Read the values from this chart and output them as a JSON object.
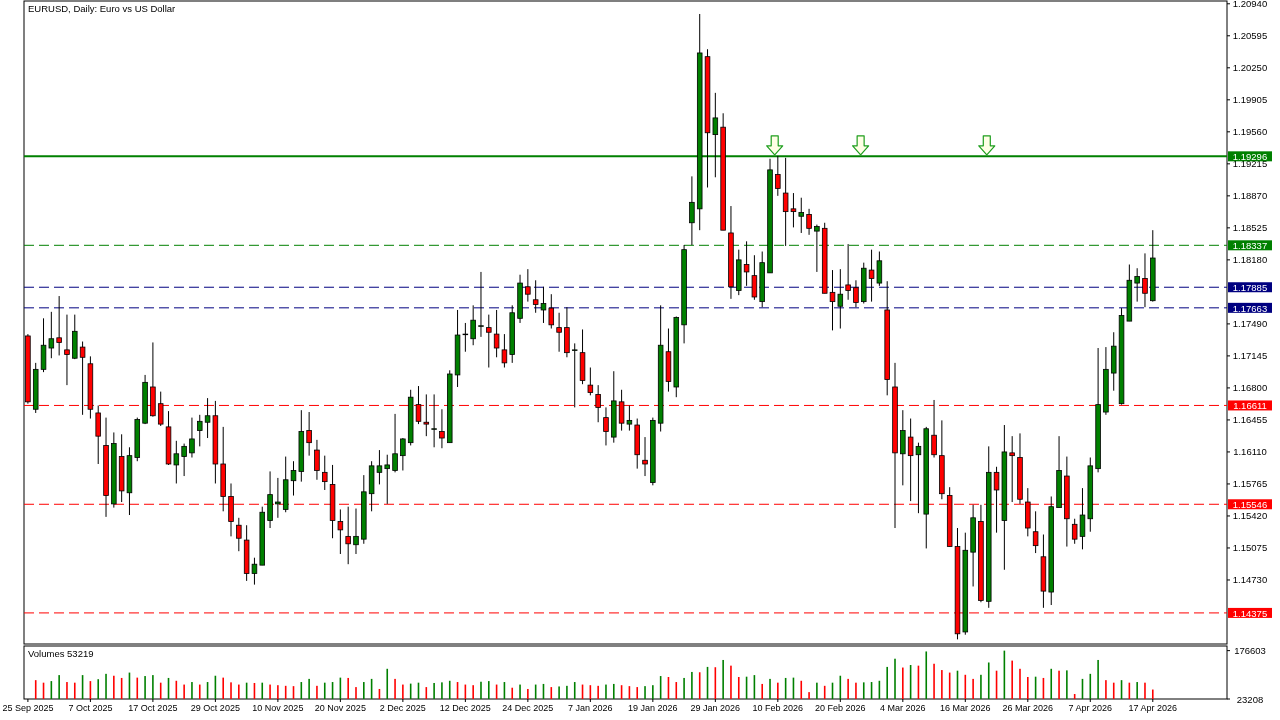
{
  "chart_data": [
    {
      "type": "candlestick",
      "title": "EURUSD, Daily: Euro vs US Dollar",
      "tick_labels": "y",
      "categories": [
        null,
        null,
        null,
        null,
        null,
        null,
        null,
        null,
        null,
        null,
        null,
        null,
        null,
        null,
        null,
        null,
        null,
        null,
        null,
        null,
        null,
        null,
        null,
        null,
        null,
        null,
        null,
        null,
        null,
        null,
        null,
        null,
        null,
        null,
        null,
        null,
        null,
        null,
        null,
        null,
        null,
        null,
        null,
        null,
        null,
        null,
        null,
        null,
        null,
        null,
        null,
        null,
        null,
        null,
        null,
        null,
        null,
        null,
        null,
        null,
        null,
        null,
        null,
        null,
        null,
        null,
        null,
        null,
        null,
        null,
        null,
        null,
        null,
        null,
        null,
        null,
        null,
        null,
        null,
        null,
        null,
        null,
        null,
        null,
        null,
        null,
        null,
        null,
        null,
        null,
        null,
        null,
        null,
        null,
        null,
        null,
        null,
        null,
        null,
        null,
        null,
        null,
        null,
        null,
        null,
        null,
        null,
        null,
        null,
        null,
        null,
        null,
        null,
        null,
        null,
        null,
        null,
        null,
        null,
        null,
        null,
        null,
        null,
        null,
        null,
        null,
        null,
        null,
        null,
        null,
        null,
        null,
        null,
        null,
        null,
        null,
        null,
        null,
        null,
        null,
        null,
        null,
        null,
        null,
        null,
        null,
        null,
        null,
        null,
        null,
        null,
        null,
        null,
        null
      ],
      "ohlc": [
        [
          1.1736,
          1.1738,
          1.1663,
          1.1665
        ],
        [
          1.1657,
          1.1707,
          1.1653,
          1.17
        ],
        [
          1.17,
          1.1755,
          1.1697,
          1.1726
        ],
        [
          1.1723,
          1.1762,
          1.1712,
          1.1733
        ],
        [
          1.1734,
          1.1779,
          1.1715,
          1.1729
        ],
        [
          1.1721,
          1.1759,
          1.1683,
          1.1716
        ],
        [
          1.1712,
          1.1759,
          1.1711,
          1.1741
        ],
        [
          1.1724,
          1.173,
          1.1651,
          1.1713
        ],
        [
          1.1706,
          1.1714,
          1.1647,
          1.1657
        ],
        [
          1.1653,
          1.1661,
          1.1598,
          1.1628
        ],
        [
          1.1618,
          1.1648,
          1.1541,
          1.1564
        ],
        [
          1.1555,
          1.1632,
          1.1551,
          1.162
        ],
        [
          1.1606,
          1.163,
          1.1557,
          1.1569
        ],
        [
          1.1567,
          1.1616,
          1.1543,
          1.1607
        ],
        [
          1.1605,
          1.1648,
          1.1601,
          1.1646
        ],
        [
          1.1642,
          1.1694,
          1.1641,
          1.1686
        ],
        [
          1.1681,
          1.1729,
          1.1649,
          1.165
        ],
        [
          1.1663,
          1.1676,
          1.1639,
          1.1641
        ],
        [
          1.1638,
          1.1655,
          1.1597,
          1.1598
        ],
        [
          1.1597,
          1.1623,
          1.1577,
          1.1609
        ],
        [
          1.1606,
          1.162,
          1.1585,
          1.1617
        ],
        [
          1.161,
          1.1648,
          1.1605,
          1.1625
        ],
        [
          1.1634,
          1.1651,
          1.1617,
          1.1644
        ],
        [
          1.1643,
          1.1669,
          1.1626,
          1.165
        ],
        [
          1.165,
          1.1666,
          1.1577,
          1.1598
        ],
        [
          1.1598,
          1.1638,
          1.1547,
          1.1563
        ],
        [
          1.1563,
          1.1577,
          1.152,
          1.1536
        ],
        [
          1.1532,
          1.154,
          1.1504,
          1.1518
        ],
        [
          1.1516,
          1.1532,
          1.1472,
          1.148
        ],
        [
          1.148,
          1.1497,
          1.1468,
          1.149
        ],
        [
          1.1489,
          1.1552,
          1.1489,
          1.1546
        ],
        [
          1.1537,
          1.159,
          1.1529,
          1.1565
        ],
        [
          1.1555,
          1.1583,
          1.154,
          1.1557
        ],
        [
          1.1549,
          1.1606,
          1.1546,
          1.1581
        ],
        [
          1.158,
          1.1601,
          1.1564,
          1.1591
        ],
        [
          1.159,
          1.1656,
          1.1579,
          1.1633
        ],
        [
          1.1634,
          1.1654,
          1.1607,
          1.1621
        ],
        [
          1.1613,
          1.1624,
          1.1581,
          1.1591
        ],
        [
          1.1589,
          1.1607,
          1.157,
          1.1579
        ],
        [
          1.1576,
          1.1597,
          1.1518,
          1.1537
        ],
        [
          1.1536,
          1.1549,
          1.1501,
          1.1527
        ],
        [
          1.152,
          1.1552,
          1.149,
          1.1512
        ],
        [
          1.1511,
          1.155,
          1.1501,
          1.152
        ],
        [
          1.1517,
          1.1586,
          1.1512,
          1.1568
        ],
        [
          1.1566,
          1.1601,
          1.1547,
          1.1596
        ],
        [
          1.1589,
          1.1613,
          1.1576,
          1.1596
        ],
        [
          1.1593,
          1.1608,
          1.1555,
          1.1597
        ],
        [
          1.1591,
          1.1652,
          1.1589,
          1.1609
        ],
        [
          1.1607,
          1.1626,
          1.1591,
          1.1625
        ],
        [
          1.1621,
          1.1678,
          1.1618,
          1.167
        ],
        [
          1.1662,
          1.1682,
          1.1641,
          1.1644
        ],
        [
          1.1643,
          1.1673,
          1.1628,
          1.1641
        ],
        [
          1.1636,
          1.1673,
          1.1616,
          1.1636
        ],
        [
          1.1633,
          1.1657,
          1.1615,
          1.1626
        ],
        [
          1.1621,
          1.1699,
          1.1621,
          1.1695
        ],
        [
          1.1694,
          1.1764,
          1.1681,
          1.1737
        ],
        [
          1.1738,
          1.175,
          1.1719,
          1.1738
        ],
        [
          1.1733,
          1.1769,
          1.1726,
          1.1753
        ],
        [
          1.1747,
          1.1805,
          1.1735,
          1.1747
        ],
        [
          1.1745,
          1.1759,
          1.1702,
          1.174
        ],
        [
          1.1738,
          1.1764,
          1.1713,
          1.1723
        ],
        [
          1.1721,
          1.1738,
          1.1702,
          1.1707
        ],
        [
          1.1716,
          1.1769,
          1.1707,
          1.1761
        ],
        [
          1.1755,
          1.1802,
          1.175,
          1.1793
        ],
        [
          1.1789,
          1.1808,
          1.1773,
          1.1781
        ],
        [
          1.1775,
          1.1796,
          1.1761,
          1.177
        ],
        [
          1.1764,
          1.1789,
          1.175,
          1.1771
        ],
        [
          1.1766,
          1.1781,
          1.1744,
          1.1748
        ],
        [
          1.1745,
          1.1761,
          1.1719,
          1.174
        ],
        [
          1.1745,
          1.1767,
          1.1713,
          1.1718
        ],
        [
          1.1721,
          1.1728,
          1.1659,
          1.1721
        ],
        [
          1.1718,
          1.1743,
          1.1684,
          1.1688
        ],
        [
          1.1683,
          1.1702,
          1.1672,
          1.1675
        ],
        [
          1.1673,
          1.1683,
          1.1643,
          1.1659
        ],
        [
          1.1648,
          1.1659,
          1.1618,
          1.1633
        ],
        [
          1.1627,
          1.1698,
          1.1621,
          1.1666
        ],
        [
          1.1665,
          1.1678,
          1.1634,
          1.1642
        ],
        [
          1.1641,
          1.1661,
          1.1634,
          1.1645
        ],
        [
          1.164,
          1.1647,
          1.1593,
          1.1608
        ],
        [
          1.1602,
          1.1627,
          1.1585,
          1.1598
        ],
        [
          1.1578,
          1.1648,
          1.1575,
          1.1645
        ],
        [
          1.1642,
          1.1769,
          1.1633,
          1.1726
        ],
        [
          1.1719,
          1.1744,
          1.1676,
          1.1687
        ],
        [
          1.1681,
          1.1757,
          1.167,
          1.1756
        ],
        [
          1.1748,
          1.1834,
          1.1728,
          1.1829
        ],
        [
          1.1858,
          1.1908,
          1.1834,
          1.188
        ],
        [
          1.1873,
          1.2083,
          1.185,
          1.2041
        ],
        [
          1.2037,
          1.2045,
          1.1896,
          1.1955
        ],
        [
          1.1953,
          1.1998,
          1.1907,
          1.1971
        ],
        [
          1.1961,
          1.1976,
          1.185,
          1.185
        ],
        [
          1.1847,
          1.1876,
          1.1776,
          1.1789
        ],
        [
          1.1785,
          1.1829,
          1.178,
          1.1818
        ],
        [
          1.1813,
          1.1838,
          1.179,
          1.1805
        ],
        [
          1.1801,
          1.1823,
          1.1775,
          1.1778
        ],
        [
          1.1773,
          1.1827,
          1.1767,
          1.1815
        ],
        [
          1.1804,
          1.1927,
          1.1804,
          1.1915
        ],
        [
          1.191,
          1.193,
          1.1887,
          1.1895
        ],
        [
          1.189,
          1.1928,
          1.1833,
          1.187
        ],
        [
          1.1873,
          1.189,
          1.1853,
          1.187
        ],
        [
          1.1865,
          1.1885,
          1.1847,
          1.1869
        ],
        [
          1.1867,
          1.1873,
          1.1845,
          1.1852
        ],
        [
          1.1849,
          1.1856,
          1.1805,
          1.1854
        ],
        [
          1.1852,
          1.1858,
          1.1782,
          1.1782
        ],
        [
          1.1783,
          1.1807,
          1.1742,
          1.1773
        ],
        [
          1.1768,
          1.1808,
          1.1744,
          1.1781
        ],
        [
          1.1791,
          1.1835,
          1.1775,
          1.1785
        ],
        [
          1.1788,
          1.1796,
          1.1767,
          1.1772
        ],
        [
          1.1773,
          1.1815,
          1.1771,
          1.1809
        ],
        [
          1.1807,
          1.1829,
          1.1773,
          1.1798
        ],
        [
          1.1793,
          1.1827,
          1.179,
          1.1817
        ],
        [
          1.1764,
          1.1795,
          1.1672,
          1.1689
        ],
        [
          1.1681,
          1.1707,
          1.1529,
          1.161
        ],
        [
          1.1609,
          1.1656,
          1.1575,
          1.1634
        ],
        [
          1.1627,
          1.1647,
          1.1558,
          1.1607
        ],
        [
          1.1608,
          1.1621,
          1.1545,
          1.1617
        ],
        [
          1.1544,
          1.1638,
          1.1507,
          1.1636
        ],
        [
          1.1629,
          1.1667,
          1.1605,
          1.1608
        ],
        [
          1.1607,
          1.1645,
          1.156,
          1.1566
        ],
        [
          1.1564,
          1.1573,
          1.1509,
          1.1509
        ],
        [
          1.1509,
          1.1529,
          1.1409,
          1.1415
        ],
        [
          1.1417,
          1.1524,
          1.1414,
          1.1505
        ],
        [
          1.1503,
          1.1554,
          1.1466,
          1.154
        ],
        [
          1.1536,
          1.1554,
          1.1449,
          1.1451
        ],
        [
          1.145,
          1.1617,
          1.1443,
          1.1589
        ],
        [
          1.1589,
          1.1595,
          1.1524,
          1.157
        ],
        [
          1.1537,
          1.164,
          1.1484,
          1.1611
        ],
        [
          1.161,
          1.1628,
          1.1557,
          1.1607
        ],
        [
          1.1605,
          1.1631,
          1.1555,
          1.156
        ],
        [
          1.1557,
          1.1572,
          1.152,
          1.1529
        ],
        [
          1.1525,
          1.1547,
          1.1502,
          1.151
        ],
        [
          1.1498,
          1.1522,
          1.1443,
          1.1461
        ],
        [
          1.146,
          1.1563,
          1.1446,
          1.1552
        ],
        [
          1.1551,
          1.1628,
          1.1551,
          1.1591
        ],
        [
          1.1585,
          1.1606,
          1.1509,
          1.1539
        ],
        [
          1.1533,
          1.1539,
          1.1512,
          1.1517
        ],
        [
          1.152,
          1.1572,
          1.1506,
          1.1543
        ],
        [
          1.1539,
          1.1605,
          1.1525,
          1.1596
        ],
        [
          1.1593,
          1.1723,
          1.1589,
          1.1662
        ],
        [
          1.1654,
          1.1724,
          1.1651,
          1.17
        ],
        [
          1.1696,
          1.174,
          1.1677,
          1.1725
        ],
        [
          1.1663,
          1.1766,
          1.1662,
          1.1758
        ],
        [
          1.1752,
          1.1813,
          1.1752,
          1.1796
        ],
        [
          1.1793,
          1.1809,
          1.1773,
          1.18
        ],
        [
          1.1798,
          1.1825,
          1.1767,
          1.1782
        ],
        [
          1.1774,
          1.185,
          1.1773,
          1.182
        ],
        null,
        null,
        null,
        null,
        null,
        null,
        null,
        null,
        null
      ],
      "colors": [
        "#ff0000",
        "#008000",
        "#008000",
        "#008000",
        "#ff0000",
        "#ff0000",
        "#008000",
        "#ff0000",
        "#ff0000",
        "#ff0000",
        "#ff0000",
        "#008000",
        "#ff0000",
        "#008000",
        "#008000",
        "#008000",
        "#ff0000",
        "#ff0000",
        "#ff0000",
        "#008000",
        "#008000",
        "#008000",
        "#008000",
        "#008000",
        "#ff0000",
        "#ff0000",
        "#ff0000",
        "#ff0000",
        "#ff0000",
        "#008000",
        "#008000",
        "#008000",
        "#008000",
        "#008000",
        "#008000",
        "#008000",
        "#ff0000",
        "#ff0000",
        "#ff0000",
        "#ff0000",
        "#ff0000",
        "#ff0000",
        "#008000",
        "#008000",
        "#008000",
        "#008000",
        "#008000",
        "#008000",
        "#008000",
        "#008000",
        "#ff0000",
        "#ff0000",
        "#008000",
        "#ff0000",
        "#008000",
        "#008000",
        "#008000",
        "#008000",
        "#008000",
        "#ff0000",
        "#ff0000",
        "#ff0000",
        "#008000",
        "#008000",
        "#ff0000",
        "#ff0000",
        "#008000",
        "#ff0000",
        "#ff0000",
        "#ff0000",
        "#008000",
        "#ff0000",
        "#ff0000",
        "#ff0000",
        "#ff0000",
        "#008000",
        "#ff0000",
        "#008000",
        "#ff0000",
        "#ff0000",
        "#008000",
        "#008000",
        "#ff0000",
        "#008000",
        "#008000",
        "#008000",
        "#008000",
        "#ff0000",
        "#008000",
        "#ff0000",
        "#ff0000",
        "#008000",
        "#ff0000",
        "#ff0000",
        "#008000",
        "#008000",
        "#ff0000",
        "#ff0000",
        "#ff0000",
        "#008000",
        "#ff0000",
        "#008000",
        "#ff0000",
        "#ff0000",
        "#008000",
        "#ff0000",
        "#ff0000",
        "#008000",
        "#ff0000",
        "#008000",
        "#ff0000",
        "#ff0000",
        "#008000",
        "#ff0000",
        "#008000",
        "#008000",
        "#ff0000",
        "#ff0000",
        "#ff0000",
        "#ff0000",
        "#008000",
        "#008000",
        "#ff0000",
        "#008000",
        "#ff0000",
        "#008000",
        "#ff0000",
        "#ff0000",
        "#ff0000",
        "#ff0000",
        "#ff0000",
        "#008000",
        "#008000",
        "#ff0000",
        "#ff0000",
        "#008000",
        "#008000",
        "#008000",
        "#008000",
        "#008000",
        "#008000",
        "#008000",
        "#008000",
        "#ff0000",
        "#008000",
        null,
        null,
        null,
        null,
        null,
        null,
        null,
        null,
        null
      ],
      "ylim": [
        1.1404,
        1.2097
      ],
      "yticks": [
        {
          "value": 1.2094,
          "label": "1.20940"
        },
        1.20595,
        {
          "value": 1.2025,
          "label": "1.20250"
        },
        1.19905,
        {
          "value": 1.1956,
          "label": "1.19560"
        },
        1.19215,
        {
          "value": 1.1887,
          "label": "1.18870"
        },
        1.18525,
        {
          "value": 1.1818,
          "label": "1.18180"
        },
        {
          "value": 1.1749,
          "label": "1.17490"
        },
        1.17145,
        {
          "value": 1.168,
          "label": "1.16800"
        },
        1.16455,
        {
          "value": 1.1611,
          "label": "1.16110"
        },
        1.15765,
        {
          "value": 1.1542,
          "label": "1.15420"
        },
        1.15075,
        {
          "value": 1.1473,
          "label": "1.14730"
        }
      ],
      "ref_lines": [
        {
          "axis": "y",
          "value": 1.19296,
          "label": "1.19296",
          "color": "#008000",
          "line_style": "solid"
        },
        {
          "axis": "y",
          "value": 1.18337,
          "label": "1.18337",
          "color": "#008000",
          "line_style": "dashed"
        },
        {
          "axis": "y",
          "value": 1.17885,
          "label": "1.17885",
          "color": "#000080",
          "line_style": "dashed"
        },
        {
          "axis": "y",
          "value": 1.17663,
          "label": "1.17663",
          "color": "#000080",
          "line_style": "dashed"
        },
        {
          "axis": "y",
          "value": 1.16611,
          "label": "1.16611",
          "color": "#ff0000",
          "line_style": "dashed"
        },
        {
          "axis": "y",
          "value": 1.15546,
          "label": "1.15546",
          "color": "#ff0000",
          "line_style": "dashed"
        },
        {
          "axis": "y",
          "value": 1.14375,
          "label": "1.14375",
          "color": "#ff0000",
          "line_style": "dashed"
        }
      ]
    },
    {
      "type": "bar",
      "title": "Volumes 53219",
      "categories": [
        "25 Sep 2025",
        null,
        null,
        null,
        null,
        null,
        null,
        null,
        "7 Oct 2025",
        null,
        null,
        null,
        null,
        null,
        null,
        null,
        "17 Oct 2025",
        null,
        null,
        null,
        null,
        null,
        null,
        null,
        "29 Oct 2025",
        null,
        null,
        null,
        null,
        null,
        null,
        null,
        "10 Nov 2025",
        null,
        null,
        null,
        null,
        null,
        null,
        null,
        "20 Nov 2025",
        null,
        null,
        null,
        null,
        null,
        null,
        null,
        "2 Dec 2025",
        null,
        null,
        null,
        null,
        null,
        null,
        null,
        "12 Dec 2025",
        null,
        null,
        null,
        null,
        null,
        null,
        null,
        "24 Dec 2025",
        null,
        null,
        null,
        null,
        null,
        null,
        null,
        "7 Jan 2026",
        null,
        null,
        null,
        null,
        null,
        null,
        null,
        "19 Jan 2026",
        null,
        null,
        null,
        null,
        null,
        null,
        null,
        "29 Jan 2026",
        null,
        null,
        null,
        null,
        null,
        null,
        null,
        "10 Feb 2026",
        null,
        null,
        null,
        null,
        null,
        null,
        null,
        "20 Feb 2026",
        null,
        null,
        null,
        null,
        null,
        null,
        null,
        "4 Mar 2026",
        null,
        null,
        null,
        null,
        null,
        null,
        null,
        "16 Mar 2026",
        null,
        null,
        null,
        null,
        null,
        null,
        null,
        "26 Mar 2026",
        null,
        null,
        null,
        null,
        null,
        null,
        null,
        "7 Apr 2026",
        null,
        null,
        null,
        null,
        null,
        null,
        null,
        "17 Apr 2026",
        null,
        null,
        null,
        null,
        null,
        null,
        null,
        null,
        null
      ],
      "values": [
        null,
        83000,
        75000,
        80000,
        99000,
        77000,
        75000,
        99000,
        80000,
        86000,
        103000,
        97000,
        90000,
        107000,
        91000,
        96000,
        99000,
        75000,
        90000,
        81000,
        69000,
        77000,
        69000,
        77000,
        97000,
        91000,
        76000,
        69000,
        75000,
        74000,
        75000,
        69000,
        67000,
        65000,
        64000,
        77000,
        87000,
        65000,
        75000,
        77000,
        91000,
        90000,
        61000,
        77000,
        87000,
        55000,
        119000,
        87000,
        69000,
        72000,
        75000,
        61000,
        74000,
        76000,
        81000,
        77000,
        69000,
        67000,
        78000,
        80000,
        69000,
        77000,
        59000,
        69000,
        55000,
        69000,
        71000,
        61000,
        63000,
        65000,
        77000,
        69000,
        67000,
        65000,
        69000,
        71000,
        67000,
        64000,
        61000,
        64000,
        67000,
        96000,
        93000,
        77000,
        90000,
        109000,
        108000,
        125000,
        124000,
        147000,
        129000,
        93000,
        94000,
        99000,
        71000,
        87000,
        75000,
        90000,
        91000,
        81000,
        45000,
        75000,
        65000,
        75000,
        97000,
        87000,
        75000,
        76000,
        77000,
        81000,
        125000,
        151000,
        123000,
        131000,
        129000,
        174000,
        135000,
        115000,
        107000,
        113000,
        100000,
        87000,
        100000,
        139000,
        113000,
        176603,
        145000,
        119000,
        93000,
        94000,
        90000,
        119000,
        113000,
        114000,
        39000,
        87000,
        103000,
        147000,
        83000,
        75000,
        83000,
        75000,
        77000,
        75000,
        53219,
        null,
        null,
        null,
        null,
        null,
        null,
        null,
        null,
        null
      ],
      "colors": [
        null,
        "#ff0000",
        "#ff0000",
        "#008000",
        "#008000",
        "#ff0000",
        "#ff0000",
        "#008000",
        "#ff0000",
        "#008000",
        "#008000",
        "#ff0000",
        "#ff0000",
        "#008000",
        "#ff0000",
        "#008000",
        "#008000",
        "#ff0000",
        "#008000",
        "#ff0000",
        "#ff0000",
        "#008000",
        "#ff0000",
        "#008000",
        "#008000",
        "#ff0000",
        "#ff0000",
        "#ff0000",
        "#008000",
        "#ff0000",
        "#008000",
        "#ff0000",
        "#ff0000",
        "#ff0000",
        "#ff0000",
        "#008000",
        "#008000",
        "#ff0000",
        "#008000",
        "#008000",
        "#008000",
        "#ff0000",
        "#ff0000",
        "#008000",
        "#008000",
        "#ff0000",
        "#008000",
        "#ff0000",
        "#ff0000",
        "#008000",
        "#008000",
        "#ff0000",
        "#008000",
        "#008000",
        "#008000",
        "#ff0000",
        "#ff0000",
        "#ff0000",
        "#008000",
        "#008000",
        "#ff0000",
        "#008000",
        "#ff0000",
        "#008000",
        "#ff0000",
        "#008000",
        "#008000",
        "#ff0000",
        "#008000",
        "#008000",
        "#008000",
        "#ff0000",
        "#ff0000",
        "#ff0000",
        "#008000",
        "#008000",
        "#ff0000",
        "#ff0000",
        "#ff0000",
        "#008000",
        "#008000",
        "#008000",
        "#ff0000",
        "#ff0000",
        "#008000",
        "#008000",
        "#ff0000",
        "#008000",
        "#ff0000",
        "#008000",
        "#ff0000",
        "#ff0000",
        "#008000",
        "#008000",
        "#ff0000",
        "#008000",
        "#ff0000",
        "#008000",
        "#008000",
        "#ff0000",
        "#ff0000",
        "#008000",
        "#ff0000",
        "#008000",
        "#008000",
        "#ff0000",
        "#ff0000",
        "#008000",
        "#008000",
        "#008000",
        "#008000",
        "#008000",
        "#ff0000",
        "#008000",
        "#ff0000",
        "#008000",
        "#ff0000",
        "#ff0000",
        "#ff0000",
        "#008000",
        "#ff0000",
        "#ff0000",
        "#008000",
        "#008000",
        "#ff0000",
        "#008000",
        "#ff0000",
        "#ff0000",
        "#ff0000",
        "#008000",
        "#ff0000",
        "#008000",
        "#ff0000",
        "#008000",
        "#ff0000",
        "#008000",
        "#008000",
        "#008000",
        "#ff0000",
        "#ff0000",
        "#008000",
        "#ff0000",
        "#008000",
        "#ff0000",
        "#ff0000",
        null,
        null,
        null,
        null,
        null,
        null,
        null,
        null,
        null
      ],
      "ylim": [
        23208,
        191300
      ],
      "yticks": [
        23208,
        176603
      ]
    }
  ]
}
